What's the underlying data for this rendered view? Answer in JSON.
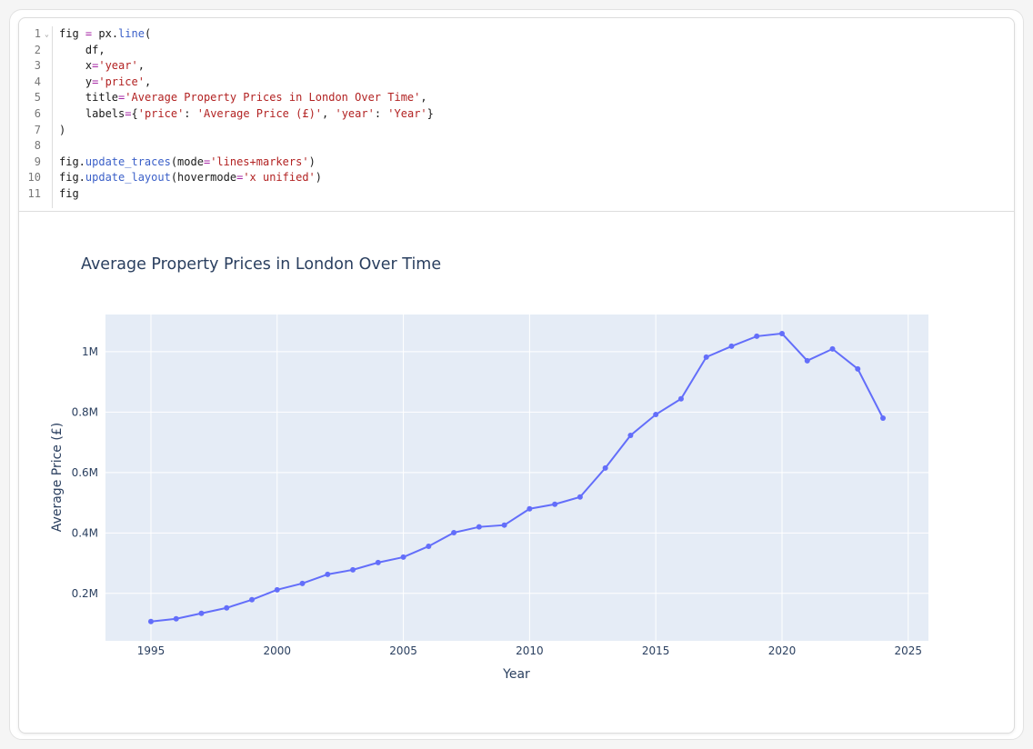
{
  "code": {
    "lines": [
      [
        [
          "fig ",
          "txt"
        ],
        [
          "=",
          "op"
        ],
        [
          " px.",
          "txt"
        ],
        [
          "line",
          "fn"
        ],
        [
          "(",
          "txt"
        ]
      ],
      [
        [
          "    df,",
          "txt"
        ]
      ],
      [
        [
          "    x",
          "txt"
        ],
        [
          "=",
          "op"
        ],
        [
          "'year'",
          "str"
        ],
        [
          ",",
          "txt"
        ]
      ],
      [
        [
          "    y",
          "txt"
        ],
        [
          "=",
          "op"
        ],
        [
          "'price'",
          "str"
        ],
        [
          ",",
          "txt"
        ]
      ],
      [
        [
          "    title",
          "txt"
        ],
        [
          "=",
          "op"
        ],
        [
          "'Average Property Prices in London Over Time'",
          "str"
        ],
        [
          ",",
          "txt"
        ]
      ],
      [
        [
          "    labels",
          "txt"
        ],
        [
          "=",
          "op"
        ],
        [
          "{",
          "txt"
        ],
        [
          "'price'",
          "str"
        ],
        [
          ": ",
          "txt"
        ],
        [
          "'Average Price (£)'",
          "str"
        ],
        [
          ", ",
          "txt"
        ],
        [
          "'year'",
          "str"
        ],
        [
          ": ",
          "txt"
        ],
        [
          "'Year'",
          "str"
        ],
        [
          "}",
          "txt"
        ]
      ],
      [
        [
          ")",
          "txt"
        ]
      ],
      [
        [
          "",
          "txt"
        ]
      ],
      [
        [
          "fig.",
          "txt"
        ],
        [
          "update_traces",
          "fn"
        ],
        [
          "(mode",
          "txt"
        ],
        [
          "=",
          "op"
        ],
        [
          "'lines+markers'",
          "str"
        ],
        [
          ")",
          "txt"
        ]
      ],
      [
        [
          "fig.",
          "txt"
        ],
        [
          "update_layout",
          "fn"
        ],
        [
          "(hovermode",
          "txt"
        ],
        [
          "=",
          "op"
        ],
        [
          "'x unified'",
          "str"
        ],
        [
          ")",
          "txt"
        ]
      ],
      [
        [
          "fig",
          "txt"
        ]
      ]
    ]
  },
  "chart_data": {
    "type": "line",
    "mode": "lines+markers",
    "title": "Average Property Prices in London Over Time",
    "xlabel": "Year",
    "ylabel": "Average Price (£)",
    "x": [
      1995,
      1996,
      1997,
      1998,
      1999,
      2000,
      2001,
      2002,
      2003,
      2004,
      2005,
      2006,
      2007,
      2008,
      2009,
      2010,
      2011,
      2012,
      2013,
      2014,
      2015,
      2016,
      2017,
      2018,
      2019,
      2020,
      2021,
      2022,
      2023,
      2024
    ],
    "y": [
      107000,
      116000,
      134000,
      152000,
      179000,
      212000,
      233000,
      263000,
      278000,
      302000,
      320000,
      356000,
      401000,
      420000,
      426000,
      480000,
      495000,
      519000,
      615000,
      723000,
      792000,
      844000,
      982000,
      1018000,
      1051000,
      1060000,
      970000,
      1009000,
      943000,
      780000
    ],
    "xlim": [
      1993.2,
      2025.8
    ],
    "ylim": [
      43000,
      1123000
    ],
    "xticks": [
      1995,
      2000,
      2005,
      2010,
      2015,
      2020,
      2025
    ],
    "xtick_labels": [
      "1995",
      "2000",
      "2005",
      "2010",
      "2015",
      "2020",
      "2025"
    ],
    "yticks": [
      200000,
      400000,
      600000,
      800000,
      1000000
    ],
    "ytick_labels": [
      "0.2M",
      "0.4M",
      "0.6M",
      "0.8M",
      "1M"
    ],
    "grid": true,
    "colors": {
      "line": "#636efa",
      "plot_bg": "#e5ecf6",
      "grid": "#ffffff",
      "text": "#2a3f5f"
    }
  }
}
